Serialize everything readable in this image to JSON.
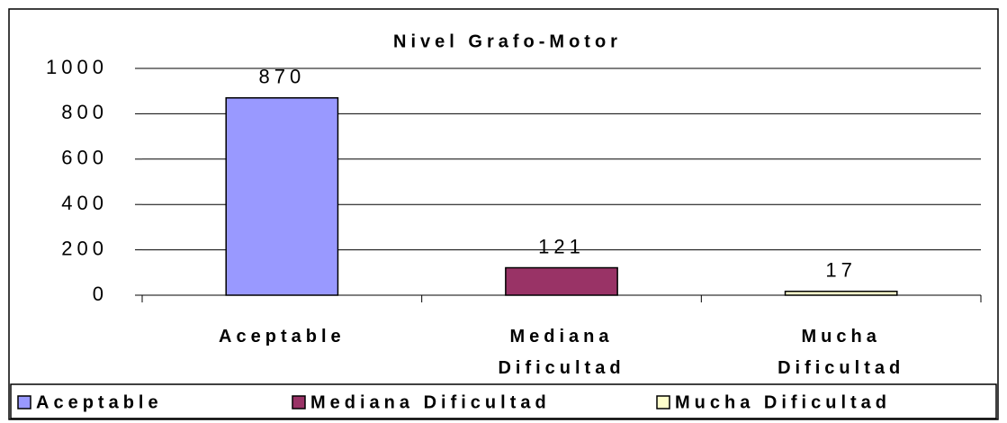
{
  "chart_data": {
    "type": "bar",
    "title": "Nivel Grafo-Motor",
    "categories": [
      "Aceptable",
      "Mediana Dificultad",
      "Mucha Dificultad"
    ],
    "values": [
      870,
      121,
      17
    ],
    "colors": [
      "#9999ff",
      "#993366",
      "#ffffcc"
    ],
    "ylim": [
      0,
      1000
    ],
    "yticks": [
      0,
      200,
      400,
      600,
      800,
      1000
    ],
    "grid": true,
    "legend": "bottom"
  }
}
